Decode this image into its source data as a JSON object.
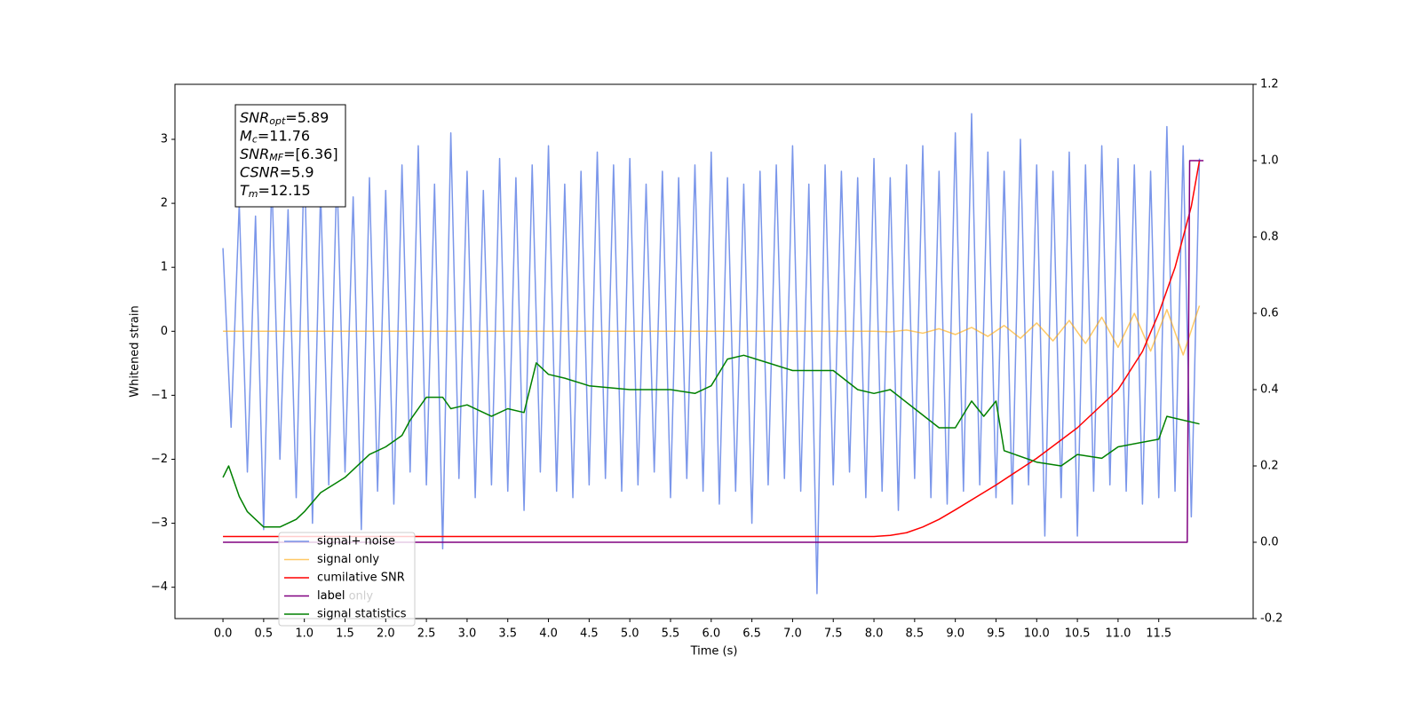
{
  "chart_data": {
    "type": "line",
    "xlabel": "Time (s)",
    "ylabel": "Whitened strain",
    "xlim": [
      -0.59,
      12.66
    ],
    "ylim": [
      -4.49,
      3.86
    ],
    "y2lim": [
      -0.2,
      1.2
    ],
    "xticks": [
      {
        "value": 0,
        "label": "0.0"
      },
      0.5,
      {
        "value": 1,
        "label": "1.0"
      },
      1.5,
      {
        "value": 2,
        "label": "2.0"
      },
      2.5,
      {
        "value": 3,
        "label": "3.0"
      },
      3.5,
      {
        "value": 4,
        "label": "4.0"
      },
      4.5,
      {
        "value": 5,
        "label": "5.0"
      },
      5.5,
      {
        "value": 6,
        "label": "6.0"
      },
      6.5,
      {
        "value": 7,
        "label": "7.0"
      },
      7.5,
      {
        "value": 8,
        "label": "8.0"
      },
      8.5,
      {
        "value": 9,
        "label": "9.0"
      },
      9.5,
      {
        "value": 10,
        "label": "10.0"
      },
      10.5,
      {
        "value": 11,
        "label": "11.0"
      },
      11.5
    ],
    "yticks": [
      {
        "value": -4,
        "label": "−4"
      },
      {
        "value": -3,
        "label": "−3"
      },
      {
        "value": -2,
        "label": "−2"
      },
      {
        "value": -1,
        "label": "−1"
      },
      0,
      1,
      2,
      3
    ],
    "y2ticks": [
      -0.2,
      {
        "value": 0,
        "label": "0.0"
      },
      0.2,
      0.4,
      0.6,
      0.8,
      {
        "value": 1,
        "label": "1.0"
      },
      1.2
    ],
    "annotation": [
      {
        "base": "SNR",
        "sub": "opt",
        "text": "=5.89"
      },
      {
        "base": "M",
        "sub": "c",
        "text": "=11.76"
      },
      {
        "base": "SNR",
        "sub": "MF",
        "text": "=[6.36]"
      },
      {
        "base": "CSNR",
        "sub": "",
        "text": "=5.9"
      },
      {
        "base": "T",
        "sub": "m",
        "text": "=12.15"
      }
    ],
    "hidden_legend": [
      "label only"
    ],
    "series": [
      {
        "name": "signal+ noise",
        "color": "#4169e1",
        "alpha": 0.7,
        "x": [
          0,
          0.1,
          0.2,
          0.3,
          0.4,
          0.5,
          0.6,
          0.7,
          0.8,
          0.9,
          1,
          1.1,
          1.2,
          1.3,
          1.4,
          1.5,
          1.6,
          1.7,
          1.8,
          1.9,
          2,
          2.1,
          2.2,
          2.3,
          2.4,
          2.5,
          2.6,
          2.7,
          2.8,
          2.9,
          3,
          3.1,
          3.2,
          3.3,
          3.4,
          3.5,
          3.6,
          3.7,
          3.8,
          3.9,
          4,
          4.1,
          4.2,
          4.3,
          4.4,
          4.5,
          4.6,
          4.7,
          4.8,
          4.9,
          5,
          5.1,
          5.2,
          5.3,
          5.4,
          5.5,
          5.6,
          5.7,
          5.8,
          5.9,
          6,
          6.1,
          6.2,
          6.3,
          6.4,
          6.5,
          6.6,
          6.7,
          6.8,
          6.9,
          7,
          7.1,
          7.2,
          7.3,
          7.4,
          7.5,
          7.6,
          7.7,
          7.8,
          7.9,
          8,
          8.1,
          8.2,
          8.3,
          8.4,
          8.5,
          8.6,
          8.7,
          8.8,
          8.9,
          9,
          9.1,
          9.2,
          9.3,
          9.4,
          9.5,
          9.6,
          9.7,
          9.8,
          9.9,
          10,
          10.1,
          10.2,
          10.3,
          10.4,
          10.5,
          10.6,
          10.7,
          10.8,
          10.9,
          11,
          11.1,
          11.2,
          11.3,
          11.4,
          11.5,
          11.6,
          11.7,
          11.8,
          11.9,
          12
        ],
        "values": [
          1.3,
          -1.5,
          2.0,
          -2.2,
          1.8,
          -3.1,
          2.4,
          -2.0,
          1.9,
          -2.6,
          2.8,
          -3.0,
          2.2,
          -2.4,
          2.5,
          -2.2,
          2.1,
          -3.1,
          2.4,
          -2.5,
          2.2,
          -2.7,
          2.6,
          -2.2,
          2.9,
          -2.4,
          2.3,
          -3.4,
          3.1,
          -2.3,
          2.5,
          -2.6,
          2.2,
          -2.4,
          2.7,
          -2.5,
          2.4,
          -2.8,
          2.6,
          -2.2,
          2.9,
          -2.5,
          2.3,
          -2.6,
          2.5,
          -2.4,
          2.8,
          -2.3,
          2.6,
          -2.5,
          2.7,
          -2.4,
          2.3,
          -2.2,
          2.5,
          -2.6,
          2.4,
          -2.3,
          2.6,
          -2.5,
          2.8,
          -2.7,
          2.4,
          -2.5,
          2.3,
          -3.0,
          2.5,
          -2.4,
          2.6,
          -2.3,
          2.9,
          -2.5,
          2.3,
          -4.1,
          2.6,
          -2.4,
          2.5,
          -2.2,
          2.4,
          -2.6,
          2.7,
          -2.5,
          2.4,
          -2.8,
          2.6,
          -2.3,
          2.9,
          -2.6,
          2.5,
          -2.7,
          3.1,
          -2.5,
          3.4,
          -2.4,
          2.8,
          -2.6,
          2.5,
          -2.7,
          3.0,
          -2.4,
          2.6,
          -3.2,
          2.5,
          -2.6,
          2.8,
          -3.2,
          2.6,
          -2.5,
          2.9,
          -2.4,
          2.7,
          -2.5,
          2.6,
          -2.7,
          2.5,
          -2.6,
          3.2,
          -2.5,
          2.9,
          -2.9,
          2.7
        ]
      },
      {
        "name": "signal only",
        "color": "#ffa500",
        "alpha": 0.6,
        "x": [
          0,
          8.0,
          8.2,
          8.4,
          8.6,
          8.8,
          9.0,
          9.2,
          9.4,
          9.6,
          9.8,
          10.0,
          10.2,
          10.4,
          10.6,
          10.8,
          11.0,
          11.2,
          11.4,
          11.6,
          11.8,
          12.0
        ],
        "values": [
          0,
          0,
          -0.01,
          0.02,
          -0.03,
          0.04,
          -0.05,
          0.06,
          -0.08,
          0.09,
          -0.11,
          0.13,
          -0.15,
          0.17,
          -0.19,
          0.22,
          -0.25,
          0.28,
          -0.31,
          0.34,
          -0.37,
          0.4
        ]
      },
      {
        "name": "cumilative SNR",
        "color": "#ff0000",
        "axis": "y2",
        "x": [
          0,
          8.0,
          8.2,
          8.4,
          8.6,
          8.8,
          9.0,
          9.5,
          10.0,
          10.5,
          11.0,
          11.3,
          11.5,
          11.7,
          11.9,
          12.0
        ],
        "values": [
          0.015,
          0.015,
          0.018,
          0.025,
          0.04,
          0.06,
          0.085,
          0.15,
          0.22,
          0.3,
          0.4,
          0.5,
          0.6,
          0.72,
          0.88,
          1.0
        ]
      },
      {
        "name": "label",
        "color": "#800080",
        "axis": "y2",
        "x": [
          0,
          11.85,
          11.88,
          12.05
        ],
        "values": [
          0,
          0,
          1,
          1
        ]
      },
      {
        "name": "signal statistics",
        "color": "#008000",
        "axis": "y2",
        "x": [
          0,
          0.07,
          0.2,
          0.3,
          0.5,
          0.7,
          0.9,
          1.0,
          1.2,
          1.5,
          1.6,
          1.8,
          2.0,
          2.2,
          2.3,
          2.5,
          2.7,
          2.8,
          3.0,
          3.3,
          3.5,
          3.7,
          3.85,
          4.0,
          4.2,
          4.5,
          5.0,
          5.5,
          5.8,
          6.0,
          6.2,
          6.4,
          6.7,
          7.0,
          7.5,
          7.8,
          8.0,
          8.2,
          8.5,
          8.8,
          9.0,
          9.2,
          9.35,
          9.5,
          9.6,
          10.0,
          10.3,
          10.5,
          10.8,
          11.0,
          11.5,
          11.6,
          12.0
        ],
        "values": [
          0.17,
          0.2,
          0.12,
          0.08,
          0.04,
          0.04,
          0.06,
          0.08,
          0.13,
          0.17,
          0.19,
          0.23,
          0.25,
          0.28,
          0.32,
          0.38,
          0.38,
          0.35,
          0.36,
          0.33,
          0.35,
          0.34,
          0.47,
          0.44,
          0.43,
          0.41,
          0.4,
          0.4,
          0.39,
          0.41,
          0.48,
          0.49,
          0.47,
          0.45,
          0.45,
          0.4,
          0.39,
          0.4,
          0.35,
          0.3,
          0.3,
          0.37,
          0.33,
          0.37,
          0.24,
          0.21,
          0.2,
          0.23,
          0.22,
          0.25,
          0.27,
          0.33,
          0.31
        ]
      }
    ]
  }
}
